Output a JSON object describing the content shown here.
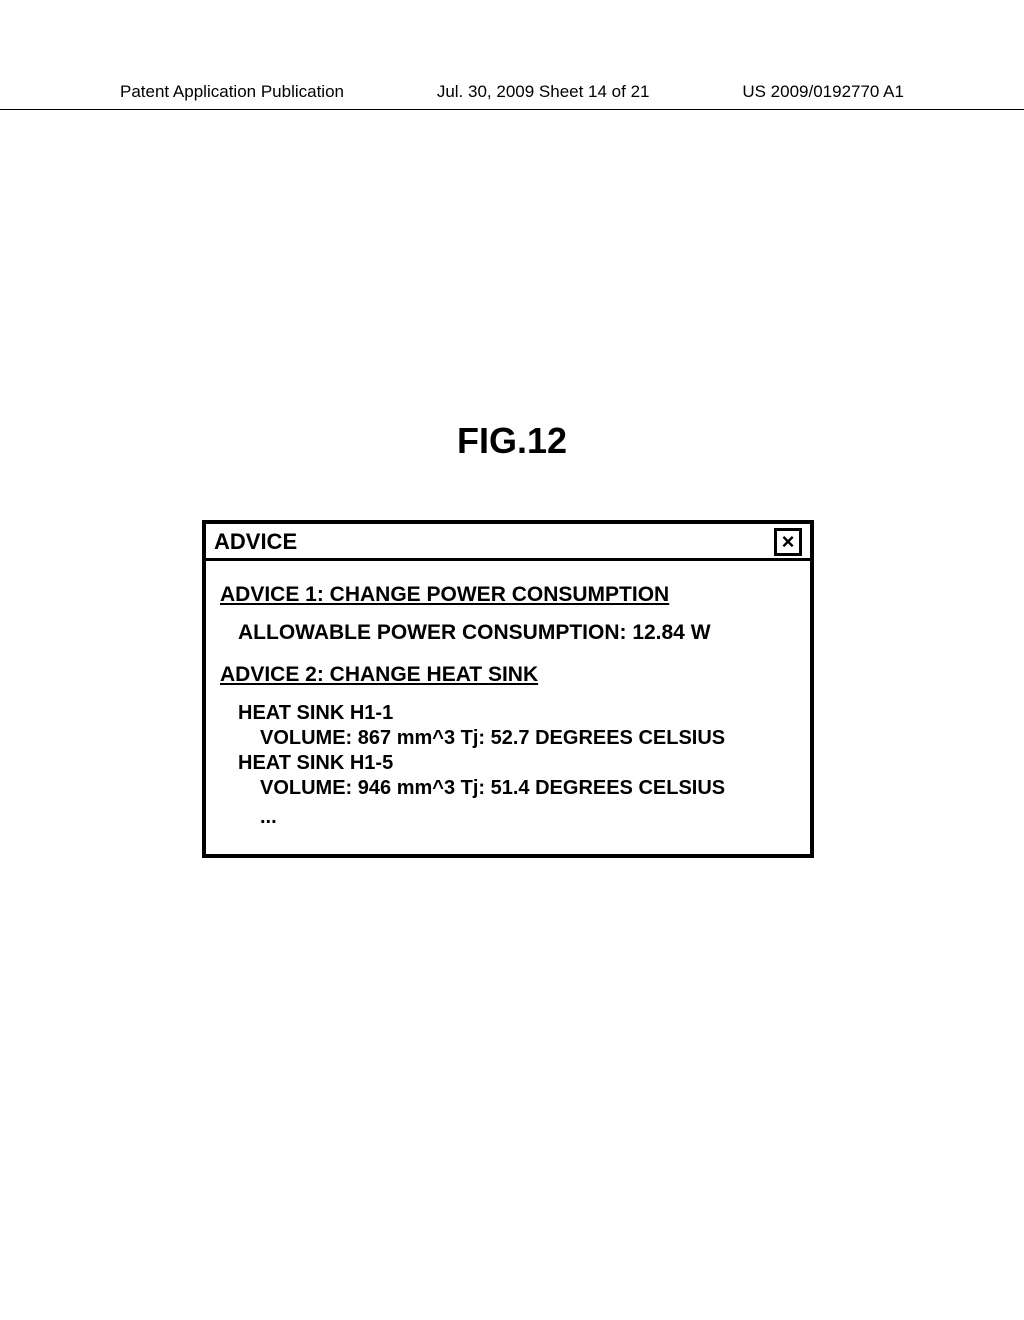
{
  "header": {
    "left": "Patent Application Publication",
    "center": "Jul. 30, 2009  Sheet 14 of 21",
    "right": "US 2009/0192770 A1"
  },
  "figure_label": "FIG.12",
  "dialog": {
    "title": "ADVICE",
    "close_glyph": "×",
    "advice1": {
      "heading": "ADVICE 1:  CHANGE POWER CONSUMPTION",
      "detail": "ALLOWABLE POWER CONSUMPTION: 12.84 W"
    },
    "advice2": {
      "heading": "ADVICE 2:  CHANGE HEAT SINK",
      "heatsinks": [
        {
          "name": "HEAT SINK H1-1",
          "spec": "VOLUME: 867 mm^3  Tj: 52.7 DEGREES CELSIUS"
        },
        {
          "name": "HEAT SINK H1-5",
          "spec": "VOLUME: 946 mm^3  Tj: 51.4 DEGREES CELSIUS"
        }
      ],
      "ellipsis": "..."
    }
  }
}
